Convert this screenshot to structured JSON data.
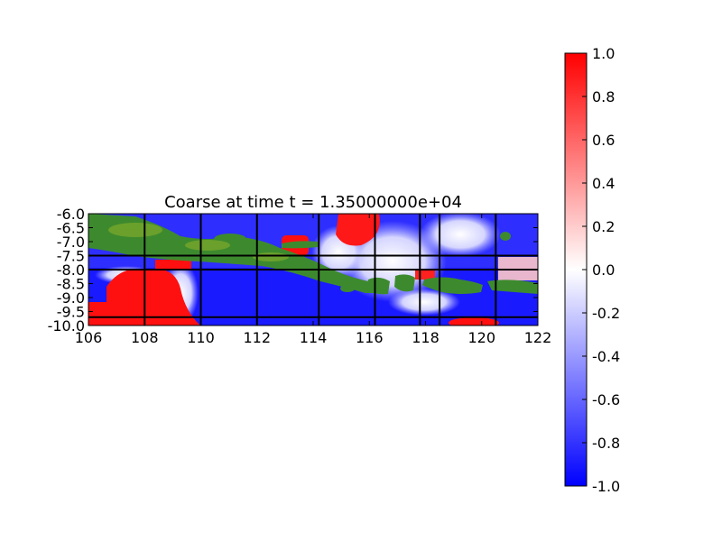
{
  "chart_data": {
    "type": "heatmap",
    "title": "Coarse at time t = 1.35000000e+04",
    "xlabel": "",
    "ylabel": "",
    "xlim": [
      106,
      122
    ],
    "ylim": [
      -10.0,
      -6.0
    ],
    "x_ticks": [
      "106",
      "108",
      "110",
      "112",
      "114",
      "116",
      "118",
      "120",
      "122"
    ],
    "y_ticks": [
      "-6.0",
      "-6.5",
      "-7.0",
      "-7.5",
      "-8.0",
      "-8.5",
      "-9.0",
      "-9.5",
      "-10.0"
    ],
    "colorbar": {
      "min": -1.0,
      "max": 1.0,
      "ticks": [
        "1.0",
        "0.8",
        "0.6",
        "0.4",
        "0.2",
        "0.0",
        "-0.2",
        "-0.4",
        "-0.6",
        "-0.8",
        "-1.0"
      ],
      "colors": {
        "low": "#0000ff",
        "mid": "#ffffff",
        "high": "#ff0000"
      }
    },
    "land_color": "#3d8a2e",
    "grid_lines": {
      "x": [
        108,
        110,
        112,
        114.2,
        116.2,
        117.8,
        118.5,
        120.5
      ],
      "y": [
        -7.5,
        -8.0,
        -9.7
      ]
    },
    "red_regions": [
      {
        "name": "southwest",
        "x_range": [
          106.8,
          110.0
        ],
        "y_range": [
          -10.0,
          -8.0
        ]
      },
      {
        "name": "far-west-patch",
        "x_range": [
          106.0,
          106.7
        ],
        "y_range": [
          -10.0,
          -9.2
        ]
      },
      {
        "name": "java-sea-east",
        "x_range": [
          114.8,
          116.5
        ],
        "y_range": [
          -7.2,
          -6.0
        ]
      },
      {
        "name": "madura-strait",
        "x_range": [
          113.0,
          114.0
        ],
        "y_range": [
          -7.8,
          -7.1
        ]
      },
      {
        "name": "bali-strait",
        "x_range": [
          117.6,
          118.3
        ],
        "y_range": [
          -8.1,
          -7.8
        ]
      },
      {
        "name": "south-sumbawa",
        "x_range": [
          118.6,
          120.1
        ],
        "y_range": [
          -10.0,
          -9.7
        ]
      },
      {
        "name": "northeast-pale",
        "x_range": [
          120.5,
          122.0
        ],
        "y_range": [
          -8.2,
          -7.5
        ]
      }
    ]
  }
}
